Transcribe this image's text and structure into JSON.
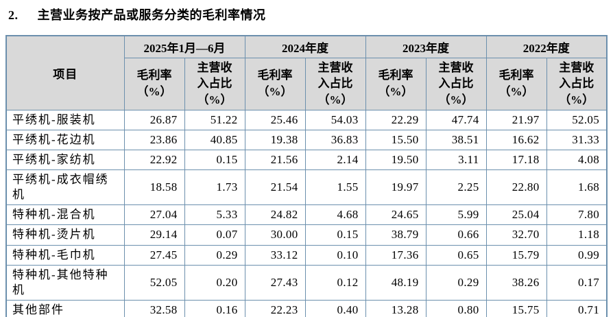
{
  "title": {
    "number": "2.",
    "text": "主营业务按产品或服务分类的毛利率情况"
  },
  "table": {
    "item_header": "项目",
    "periods": [
      "2025年1月—6月",
      "2024年度",
      "2023年度",
      "2022年度"
    ],
    "sub_headers": {
      "margin": "毛利率（%）",
      "share": "主营收入占比（%）"
    },
    "rows": [
      {
        "item": "平绣机-服装机",
        "values": [
          "26.87",
          "51.22",
          "25.46",
          "54.03",
          "22.29",
          "47.74",
          "21.97",
          "52.05"
        ]
      },
      {
        "item": "平绣机-花边机",
        "values": [
          "23.86",
          "40.85",
          "19.38",
          "36.83",
          "15.50",
          "38.51",
          "16.62",
          "31.33"
        ]
      },
      {
        "item": "平绣机-家纺机",
        "values": [
          "22.92",
          "0.15",
          "21.56",
          "2.14",
          "19.50",
          "3.11",
          "17.18",
          "4.08"
        ]
      },
      {
        "item": "平绣机-成衣帽绣机",
        "values": [
          "18.58",
          "1.73",
          "21.54",
          "1.55",
          "19.97",
          "2.25",
          "22.80",
          "1.68"
        ]
      },
      {
        "item": "特种机-混合机",
        "values": [
          "27.04",
          "5.33",
          "24.82",
          "4.68",
          "24.65",
          "5.99",
          "25.04",
          "7.80"
        ]
      },
      {
        "item": "特种机-烫片机",
        "values": [
          "29.14",
          "0.07",
          "30.00",
          "0.15",
          "38.79",
          "0.66",
          "32.70",
          "1.18"
        ]
      },
      {
        "item": "特种机-毛巾机",
        "values": [
          "27.45",
          "0.29",
          "33.12",
          "0.10",
          "17.36",
          "0.65",
          "15.79",
          "0.99"
        ]
      },
      {
        "item": "特种机-其他特种机",
        "values": [
          "52.05",
          "0.20",
          "27.43",
          "0.12",
          "48.19",
          "0.29",
          "38.26",
          "0.17"
        ]
      },
      {
        "item": "其他部件",
        "values": [
          "32.58",
          "0.16",
          "22.23",
          "0.40",
          "13.28",
          "0.80",
          "15.75",
          "0.71"
        ]
      }
    ],
    "colors": {
      "border": "#6b8fad",
      "header_bg": "#d9d9d9",
      "page_bg": "#ffffff"
    }
  }
}
